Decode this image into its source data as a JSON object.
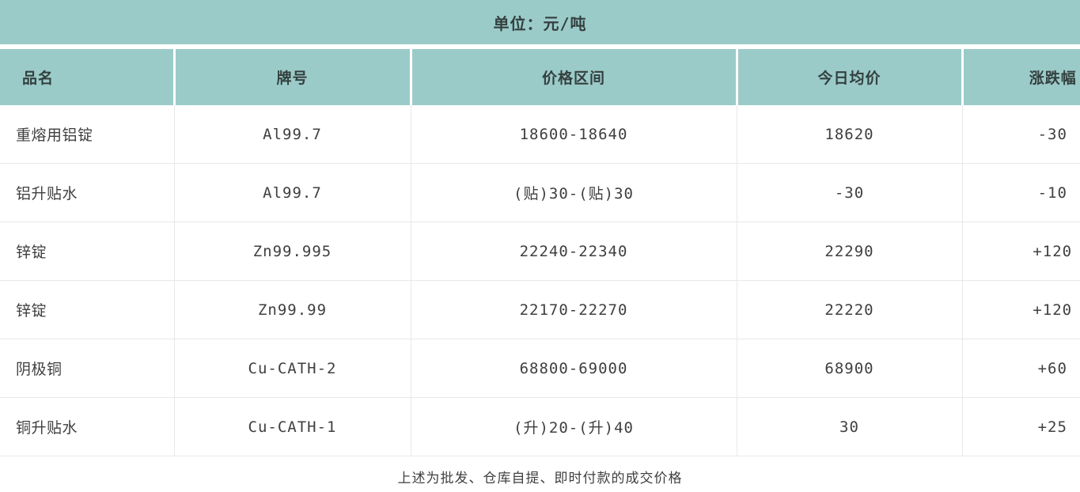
{
  "title": "单位：元/吨",
  "colors": {
    "header_bg": "#9bcbc9",
    "grid_line": "#e8e8e8",
    "text": "#3f3f3f"
  },
  "table": {
    "columns": [
      "品名",
      "牌号",
      "价格区间",
      "今日均价",
      "涨跌幅"
    ],
    "rows": [
      [
        "重熔用铝锭",
        "Al99.7",
        "18600-18640",
        "18620",
        "-30"
      ],
      [
        "铝升贴水",
        "Al99.7",
        "(贴)30-(贴)30",
        "-30",
        "-10"
      ],
      [
        "锌锭",
        "Zn99.995",
        "22240-22340",
        "22290",
        "+120"
      ],
      [
        "锌锭",
        "Zn99.99",
        "22170-22270",
        "22220",
        "+120"
      ],
      [
        "阴极铜",
        "Cu-CATH-2",
        "68800-69000",
        "68900",
        "+60"
      ],
      [
        "铜升贴水",
        "Cu-CATH-1",
        "(升)20-(升)40",
        "30",
        "+25"
      ]
    ]
  },
  "footer": "上述为批发、仓库自提、即时付款的成交价格"
}
